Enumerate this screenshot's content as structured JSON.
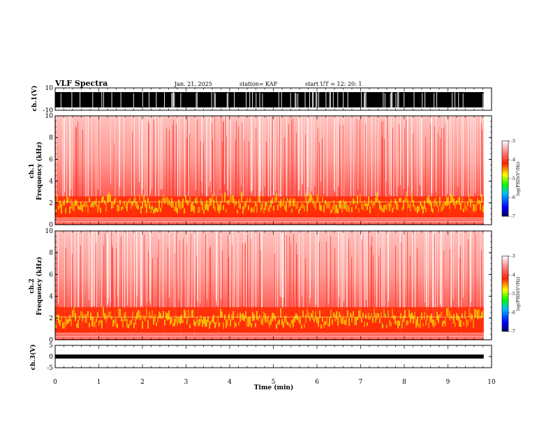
{
  "header": {
    "title": "VLF Spectra",
    "date": "Jan. 21, 2025",
    "station": "station= KAP",
    "start_ut": "start  UT  =   12: 20: 1"
  },
  "chart_data": [
    {
      "type": "line",
      "name": "ch1-waveform",
      "ylabel": "ch.1(V)",
      "ylim": [
        -10,
        10
      ],
      "yticks": [
        "10",
        "-10"
      ],
      "xlim": [
        0,
        10
      ],
      "color": "#000000"
    },
    {
      "type": "heatmap",
      "name": "ch1-spectrogram",
      "ylabel": "ch.1\nFrequency (kHz)",
      "ylim": [
        0,
        10
      ],
      "yticks": [
        "0",
        "2",
        "4",
        "6",
        "8",
        "10"
      ],
      "xlim": [
        0,
        10
      ],
      "data_end_min": 9.82,
      "colorbar": {
        "label": "log(PSD)(V²/Hz)",
        "range": [
          -7,
          -3
        ],
        "ticks": [
          "-3",
          "-4",
          "-5",
          "-6",
          "-7"
        ]
      }
    },
    {
      "type": "heatmap",
      "name": "ch2-spectrogram",
      "ylabel": "ch.2\nFrequency (kHz)",
      "ylim": [
        0,
        10
      ],
      "yticks": [
        "0",
        "2",
        "4",
        "6",
        "8",
        "10"
      ],
      "xlim": [
        0,
        10
      ],
      "data_end_min": 9.82,
      "colorbar": {
        "label": "log(PSD)(V²/Hz)",
        "range": [
          -7,
          -3
        ],
        "ticks": [
          "-3",
          "-4",
          "-5",
          "-6",
          "-7"
        ]
      }
    },
    {
      "type": "line",
      "name": "ch3-waveform",
      "ylabel": "ch.3(V)",
      "ylim": [
        -5,
        5
      ],
      "yticks": [
        "5",
        "0",
        "-5"
      ],
      "xlim": [
        0,
        10
      ],
      "xlabel": "Time (min)",
      "xticks": [
        "0",
        "1",
        "2",
        "3",
        "4",
        "5",
        "6",
        "7",
        "8",
        "9",
        "10"
      ],
      "color": "#000000"
    }
  ]
}
